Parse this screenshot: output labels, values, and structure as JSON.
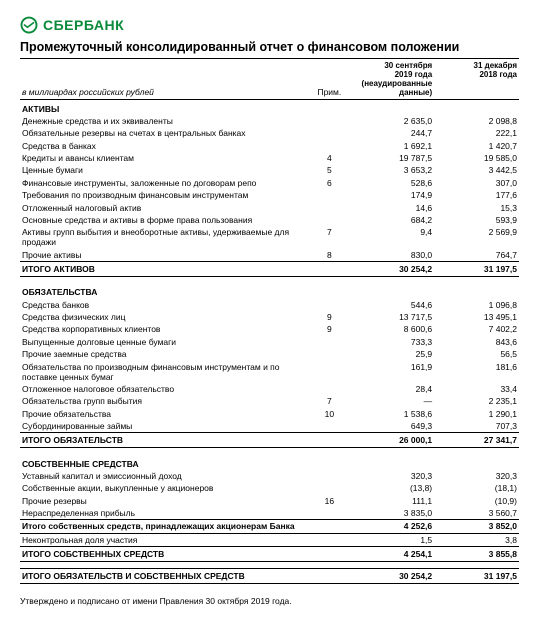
{
  "brand": {
    "name": "СБЕРБАНК",
    "color": "#0a8a3a"
  },
  "title": "Промежуточный консолидированный отчет о финансовом положении",
  "columns": {
    "unit_note": "в миллиардах российских рублей",
    "note_header": "Прим.",
    "col1_line1": "30 сентября",
    "col1_line2": "2019 года",
    "col1_line3": "(неаудированные",
    "col1_line4": "данные)",
    "col2_line1": "31 декабря",
    "col2_line2": "2018 года"
  },
  "sections": [
    {
      "type": "section",
      "label": "АКТИВЫ"
    },
    {
      "label": "Денежные средства и их эквиваленты",
      "note": "",
      "v1": "2 635,0",
      "v2": "2 098,8"
    },
    {
      "label": "Обязательные резервы на счетах в центральных банках",
      "note": "",
      "v1": "244,7",
      "v2": "222,1"
    },
    {
      "label": "Средства в банках",
      "note": "",
      "v1": "1 692,1",
      "v2": "1 420,7"
    },
    {
      "label": "Кредиты и авансы клиентам",
      "note": "4",
      "v1": "19 787,5",
      "v2": "19 585,0"
    },
    {
      "label": "Ценные бумаги",
      "note": "5",
      "v1": "3 653,2",
      "v2": "3 442,5"
    },
    {
      "label": "Финансовые инструменты, заложенные по договорам репо",
      "note": "6",
      "v1": "528,6",
      "v2": "307,0"
    },
    {
      "label": "Требования по производным финансовым инструментам",
      "note": "",
      "v1": "174,9",
      "v2": "177,6"
    },
    {
      "label": "Отложенный налоговый актив",
      "note": "",
      "v1": "14,6",
      "v2": "15,3"
    },
    {
      "label": "Основные средства и активы в форме права пользования",
      "note": "",
      "v1": "684,2",
      "v2": "593,9"
    },
    {
      "label": "Активы групп выбытия и внеоборотные активы, удерживаемые для продажи",
      "note": "7",
      "v1": "9,4",
      "v2": "2 569,9"
    },
    {
      "label": "Прочие активы",
      "note": "8",
      "v1": "830,0",
      "v2": "764,7"
    },
    {
      "type": "total",
      "label": "ИТОГО АКТИВОВ",
      "v1": "30 254,2",
      "v2": "31 197,5"
    },
    {
      "type": "spacer"
    },
    {
      "type": "section",
      "label": "ОБЯЗАТЕЛЬСТВА"
    },
    {
      "label": "Средства банков",
      "note": "",
      "v1": "544,6",
      "v2": "1 096,8"
    },
    {
      "label": "Средства физических лиц",
      "note": "9",
      "v1": "13 717,5",
      "v2": "13 495,1"
    },
    {
      "label": "Средства корпоративных клиентов",
      "note": "9",
      "v1": "8 600,6",
      "v2": "7 402,2"
    },
    {
      "label": "Выпущенные долговые ценные бумаги",
      "note": "",
      "v1": "733,3",
      "v2": "843,6"
    },
    {
      "label": "Прочие заемные средства",
      "note": "",
      "v1": "25,9",
      "v2": "56,5"
    },
    {
      "label": "Обязательства по производным финансовым инструментам и по поставке ценных бумаг",
      "note": "",
      "v1": "161,9",
      "v2": "181,6"
    },
    {
      "label": "Отложенное налоговое обязательство",
      "note": "",
      "v1": "28,4",
      "v2": "33,4"
    },
    {
      "label": "Обязательства групп выбытия",
      "note": "7",
      "v1": "—",
      "v2": "2 235,1"
    },
    {
      "label": "Прочие обязательства",
      "note": "10",
      "v1": "1 538,6",
      "v2": "1 290,1"
    },
    {
      "label": "Субординированные займы",
      "note": "",
      "v1": "649,3",
      "v2": "707,3"
    },
    {
      "type": "total",
      "label": "ИТОГО ОБЯЗАТЕЛЬСТВ",
      "v1": "26 000,1",
      "v2": "27 341,7"
    },
    {
      "type": "spacer"
    },
    {
      "type": "section",
      "label": "СОБСТВЕННЫЕ СРЕДСТВА"
    },
    {
      "label": "Уставный капитал и эмиссионный доход",
      "note": "",
      "v1": "320,3",
      "v2": "320,3"
    },
    {
      "label": "Собственные акции, выкупленные у акционеров",
      "note": "",
      "v1": "(13,8)",
      "v2": "(18,1)"
    },
    {
      "label": "Прочие резервы",
      "note": "16",
      "v1": "111,1",
      "v2": "(10,9)"
    },
    {
      "label": "Нераспределенная прибыль",
      "note": "",
      "v1": "3 835,0",
      "v2": "3 560,7"
    },
    {
      "type": "subtotal",
      "label": "Итого собственных средств, принадлежащих акционерам Банка",
      "v1": "4 252,6",
      "v2": "3 852,0",
      "bold": true
    },
    {
      "label": "Неконтрольная доля участия",
      "note": "",
      "v1": "1,5",
      "v2": "3,8"
    },
    {
      "type": "total",
      "label": "ИТОГО СОБСТВЕННЫХ СРЕДСТВ",
      "v1": "4 254,1",
      "v2": "3 855,8"
    },
    {
      "type": "spacer"
    },
    {
      "type": "total-final",
      "label": "ИТОГО ОБЯЗАТЕЛЬСТВ И СОБСТВЕННЫХ СРЕДСТВ",
      "v1": "30 254,2",
      "v2": "31 197,5"
    }
  ],
  "footer": "Утверждено и подписано от имени Правления 30 октября 2019 года."
}
